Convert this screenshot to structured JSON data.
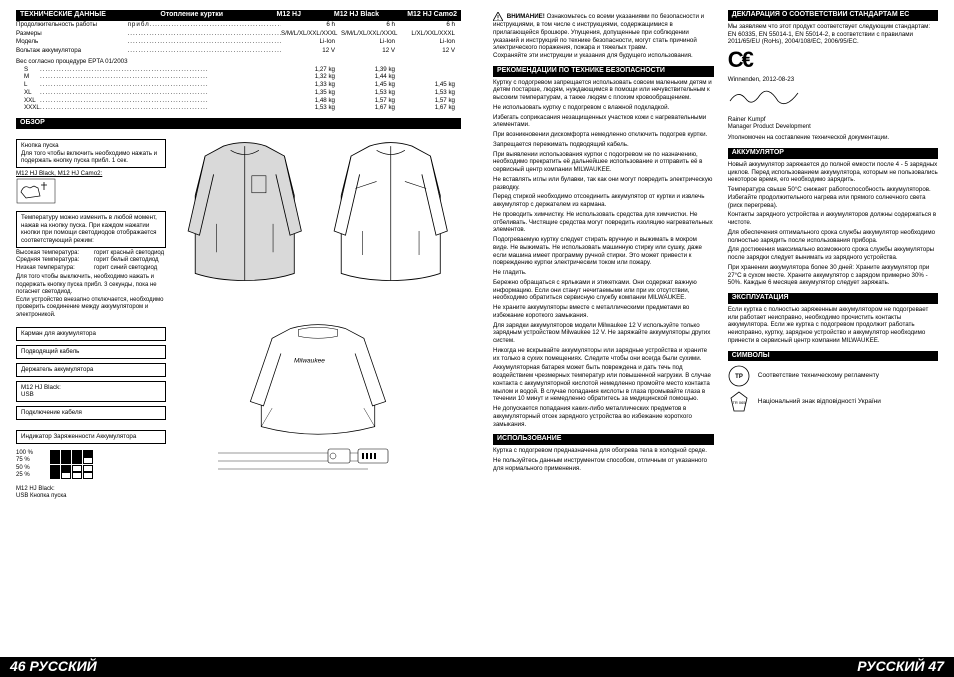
{
  "footer_left": "46  РУССКИЙ",
  "footer_right": "РУССКИЙ  47",
  "tech": {
    "header_title": "ТЕХНИЧЕСКИЕ ДАННЫЕ",
    "header_sub": "Отопление куртки",
    "cols": [
      "M12 HJ",
      "M12 HJ Black",
      "M12 HJ Camo2"
    ],
    "rows": [
      {
        "label": "Продолжительность работы",
        "unit": "прибл.",
        "v": [
          "6 h",
          "6 h",
          "6 h"
        ]
      },
      {
        "label": "Размеры",
        "unit": "",
        "v": [
          "S/M/L/XL/XXL/XXXL",
          "S/M/L/XL/XXL/XXXL",
          "L/XL/XXL/XXXL"
        ]
      },
      {
        "label": "Модель",
        "unit": "",
        "v": [
          "Li-Ion",
          "Li-Ion",
          "Li-Ion"
        ]
      },
      {
        "label": "Вольтаж аккумулятора",
        "unit": "",
        "v": [
          "12 V",
          "12 V",
          "12 V"
        ]
      }
    ],
    "weight_title": "Вес согласно процедуре EPTA 01/2003",
    "weights": [
      {
        "sz": "S",
        "v": [
          "1,27 kg",
          "1,39 kg",
          ""
        ]
      },
      {
        "sz": "M",
        "v": [
          "1,32 kg",
          "1,44 kg",
          ""
        ]
      },
      {
        "sz": "L",
        "v": [
          "1,33 kg",
          "1,45 kg",
          "1,45 kg"
        ]
      },
      {
        "sz": "XL",
        "v": [
          "1,35 kg",
          "1,53 kg",
          "1,53 kg"
        ]
      },
      {
        "sz": "XXL",
        "v": [
          "1,48 kg",
          "1,57 kg",
          "1,57 kg"
        ]
      },
      {
        "sz": "XXXL",
        "v": [
          "1,53 kg",
          "1,67 kg",
          "1,67 kg"
        ]
      }
    ]
  },
  "obzor": {
    "title": "ОБЗОР",
    "btn_box": "Кнопка пуска\nДля того чтобы включить необходимо нажать и подержать кнопку пуска прибл. 1 сек.",
    "variant_line": "M12 HJ Black, M12 HJ Camo2:",
    "temp_box": "Температуру можно изменить в любой момент, нажав на кнопку пуска. При каждом нажатии кнопки при помощи светодиодов отображается соответствующий режим:",
    "temps": [
      {
        "l": "Высокая температура:",
        "r": "горит красный светодиод"
      },
      {
        "l": "Средняя температура:",
        "r": "горит белый светодиод"
      },
      {
        "l": "Низкая температура:",
        "r": "горит синий светодиод"
      }
    ],
    "off_note": "Для того чтобы выключить, необходимо нажать и подержать кнопку пуска прибл. 3 секунды, пока не погаснет светодиод.\nЕсли устройство внезапно отключается, необходимо проверить соединение между аккумулятором и электроникой.",
    "labels": [
      "Карман для аккумулятора",
      "Подводящий кабель",
      "Держатель аккумулятора",
      "M12 HJ Black:\nUSB",
      "Подключение кабеля"
    ],
    "led_title": "Индикатор Заряженности Аккумулятора",
    "led_levels": [
      "100 %",
      "75 %",
      "50 %",
      "25 %"
    ],
    "usb_note": "M12 HJ Black:\nUSB Кнопка пуска"
  },
  "warning": {
    "title": "ВНИМАНИЕ!",
    "body": "Ознакомьтесь со всеми указаниями по безопасности и инструкциями, в том числе с инструкциями, содержащимися в прилагающейся брошюре. Упущения, допущенные при соблюдении указаний и инструкций по технике безопасности, могут стать причиной электрического поражения, пожара и тяжелых травм.\nСохраняйте эти инструкции и указания для будущего использования."
  },
  "safety": {
    "title": "РЕКОМЕНДАЦИИ ПО ТЕХНИКЕ БЕЗОПАСНОСТИ",
    "paras": [
      "Куртку с подогревом запрещается использовать совсем маленьким детям и детям постарше, людям, нуждающимся в помощи или нечувствительным к высоким температурам, а также людям с плохим кровообращением.",
      "Не использовать куртку с подогревом с влажной подкладкой.",
      "Избегать соприкасания незащищенных участков кожи с нагревательными элементами.",
      "При возникновении дискомфорта немедленно отключить подогрев куртки.",
      "Запрещается пережимать подводящий кабель.",
      "При выявлении использования куртки с подогревом не по назначению, необходимо прекратить её дальнейшее использование и отправить её в сервисный центр компании MILWAUKEE.",
      "Не вставлять иглы или булавки, так как они могут повредить электрическую разводку.",
      "Перед стиркой необходимо отсоединить аккумулятор от куртки и извлечь аккумулятор с держателем из кармана.",
      "Не проводить химчистку. Не использовать средства для химчистки. Не отбеливать. Чистящие средства могут повредить изоляцию нагревательных элементов.",
      "Подогреваемую куртку следует стирать вручную и выжимать в мокром виде. Не выжимать. Не использовать машинную стирку или сушку, даже если машина имеет программу ручной стирки. Это может привести к повреждению куртки электрическим током или пожару.",
      "Не гладить.",
      "Бережно обращаться с ярлыками и этикетками. Они содержат важную информацию. Если они станут нечитаемыми или при их отсутствии, необходимо обратиться сервисную службу компании MILWAUKEE.",
      "Не храните аккумуляторы вместе с металлическими предметами во избежание короткого замыкания.",
      "Для зарядки аккумуляторов модели Milwaukee 12 V используйте только зарядным устройством Milwaukee 12 V. Не заряжайте аккумуляторы других систем.",
      "Никогда не вскрывайте аккумуляторы или зарядные устройства и храните их только в сухих помещениях. Следите чтобы они всегда были сухими.",
      "Аккумуляторная батарея может быть повреждена и дать течь под воздействием чрезмерных температур или повышенной нагрузки. В случае контакта с аккумуляторной кислотой немедленно промойте место контакта мылом и водой. В случае попадания кислоты в глаза промывайте глаза в течении 10 минут и немедленно обратитесь за медицинской помощью.",
      "Не допускается попадания каких-либо металлических предметов в аккумуляторный отсек зарядного устройства во избежание короткого замыкания."
    ]
  },
  "usage": {
    "title": "ИСПОЛЬЗОВАНИЕ",
    "paras": [
      "Куртка с подогревом предназначена для обогрева тела в холодной среде.",
      "Не пользуйтесь данным инструментом способом, отличным от указанного для нормального применения."
    ]
  },
  "decl": {
    "title": "ДЕКЛАРАЦИЯ О СООТВЕТСТВИИ СТАНДАРТАМ ЕС",
    "body": "Мы заявляем что этот продукт соответствует следующим стандартам: EN 60335, EN 55014-1, EN 55014-2, в соответствии с правилами 2011/65/EU (RoHs), 2004/108/EC, 2006/95/EC.",
    "place_date": "Winnenden, 2012-08-23",
    "sig_name": "Rainer Kumpf",
    "sig_role": "Manager Product Development",
    "sig_note": "Уполномочен на составление технической документации."
  },
  "battery": {
    "title": "АККУМУЛЯТОР",
    "paras": [
      "Новый аккумулятор заряжается до полной емкости после 4 - 5 зарядных циклов. Перед использованием аккумулятора, которым не пользовались некоторое время, его необходимо зарядить.",
      "Температура свыше 50°С снижает работоспособность аккумуляторов. Избегайте продолжительного нагрева или прямого солнечного света (риск перегрева).",
      "Контакты зарядного устройства и аккумуляторов должны содержаться в чистоте.",
      "Для обеспечения оптимального срока службы аккумулятор необходимо полностью зарядить после использования прибора.",
      "Для достижения максимально возможного срока службы аккумуляторы после зарядки следует вынимать из зарядного устройства.",
      "При хранении аккумулятора более 30 дней: Храните аккумулятор при 27°С в сухом месте. Храните аккумулятор с зарядом примерно 30% - 50%. Каждые 6 месяцев аккумулятор следует заряжать."
    ]
  },
  "expl": {
    "title": "ЭКСПЛУАТАЦИЯ",
    "body": "Если куртка с полностью заряженным аккумулятором не подогревает или работает неисправно, необходимо прочистить контакты аккумулятора. Если же куртка с подогревом продолжит работать неисправно, куртку, зарядное устройство и аккумулятор необходимо принести в сервисный центр компании MILWAUKEE."
  },
  "symbols": {
    "title": "СИМВОЛЫ",
    "rows": [
      "Соответствие техническому регламенту",
      "Національний знак відповідності України"
    ]
  }
}
